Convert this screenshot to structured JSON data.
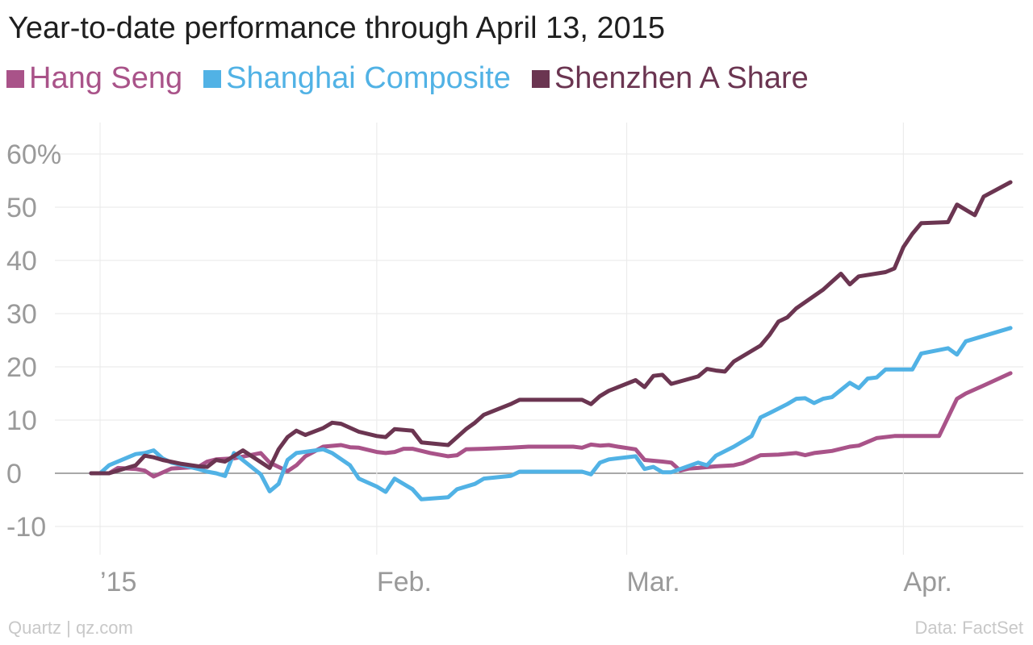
{
  "chart_data": {
    "type": "line",
    "title": "Year-to-date performance through April 13, 2015",
    "xlabel": "",
    "ylabel": "",
    "ylim": [
      -15,
      65
    ],
    "y_ticks": [
      {
        "value": 60,
        "label": "60%"
      },
      {
        "value": 50,
        "label": "50"
      },
      {
        "value": 40,
        "label": "40"
      },
      {
        "value": 30,
        "label": "30"
      },
      {
        "value": 20,
        "label": "20"
      },
      {
        "value": 10,
        "label": "10"
      },
      {
        "value": 0,
        "label": "0"
      },
      {
        "value": -10,
        "label": "-10"
      }
    ],
    "x_ticks": [
      {
        "value": "2015-01-01",
        "label": "’15"
      },
      {
        "value": "2015-02-01",
        "label": "Feb."
      },
      {
        "value": "2015-03-01",
        "label": "Mar."
      },
      {
        "value": "2015-04-01",
        "label": "Apr."
      }
    ],
    "grid": true,
    "legend_position": "top-left",
    "series": [
      {
        "name": "Hang Seng",
        "color": "#a95389",
        "points": [
          [
            "2014-12-31",
            0
          ],
          [
            "2015-01-02",
            0
          ],
          [
            "2015-01-03",
            1
          ],
          [
            "2015-01-05",
            0.8
          ],
          [
            "2015-01-06",
            0.5
          ],
          [
            "2015-01-07",
            -0.6
          ],
          [
            "2015-01-09",
            0.9
          ],
          [
            "2015-01-12",
            1.2
          ],
          [
            "2015-01-13",
            2.2
          ],
          [
            "2015-01-14",
            2.6
          ],
          [
            "2015-01-16",
            2.8
          ],
          [
            "2015-01-19",
            3.8
          ],
          [
            "2015-01-20",
            2.0
          ],
          [
            "2015-01-21",
            1.2
          ],
          [
            "2015-01-22",
            0.4
          ],
          [
            "2015-01-23",
            1.5
          ],
          [
            "2015-01-24",
            3.2
          ],
          [
            "2015-01-26",
            5.0
          ],
          [
            "2015-01-28",
            5.3
          ],
          [
            "2015-01-29",
            4.9
          ],
          [
            "2015-01-30",
            4.8
          ],
          [
            "2015-02-01",
            4.0
          ],
          [
            "2015-02-02",
            3.8
          ],
          [
            "2015-02-03",
            4.0
          ],
          [
            "2015-02-04",
            4.6
          ],
          [
            "2015-02-05",
            4.6
          ],
          [
            "2015-02-07",
            3.8
          ],
          [
            "2015-02-09",
            3.2
          ],
          [
            "2015-02-10",
            3.4
          ],
          [
            "2015-02-11",
            4.5
          ],
          [
            "2015-02-13",
            4.6
          ],
          [
            "2015-02-16",
            4.8
          ],
          [
            "2015-02-18",
            5.0
          ],
          [
            "2015-02-20",
            5.0
          ],
          [
            "2015-02-23",
            5.0
          ],
          [
            "2015-02-24",
            4.8
          ],
          [
            "2015-02-25",
            5.4
          ],
          [
            "2015-02-26",
            5.2
          ],
          [
            "2015-02-27",
            5.3
          ],
          [
            "2015-02-28",
            5.0
          ],
          [
            "2015-03-02",
            4.5
          ],
          [
            "2015-03-03",
            2.5
          ],
          [
            "2015-03-05",
            2.2
          ],
          [
            "2015-03-06",
            2.0
          ],
          [
            "2015-03-07",
            0.5
          ],
          [
            "2015-03-08",
            0.9
          ],
          [
            "2015-03-09",
            1.0
          ],
          [
            "2015-03-11",
            1.3
          ],
          [
            "2015-03-13",
            1.5
          ],
          [
            "2015-03-14",
            1.9
          ],
          [
            "2015-03-16",
            3.4
          ],
          [
            "2015-03-18",
            3.5
          ],
          [
            "2015-03-20",
            3.8
          ],
          [
            "2015-03-21",
            3.4
          ],
          [
            "2015-03-22",
            3.8
          ],
          [
            "2015-03-24",
            4.2
          ],
          [
            "2015-03-26",
            5.0
          ],
          [
            "2015-03-27",
            5.2
          ],
          [
            "2015-03-29",
            6.6
          ],
          [
            "2015-03-31",
            7.0
          ],
          [
            "2015-04-01",
            7.0
          ],
          [
            "2015-04-05",
            7.0
          ],
          [
            "2015-04-06",
            10.5
          ],
          [
            "2015-04-07",
            14.0
          ],
          [
            "2015-04-08",
            15.0
          ],
          [
            "2015-04-10",
            16.5
          ],
          [
            "2015-04-13",
            18.8
          ]
        ]
      },
      {
        "name": "Shanghai Composite",
        "color": "#51b2e5",
        "points": [
          [
            "2014-12-31",
            0
          ],
          [
            "2015-01-01",
            0
          ],
          [
            "2015-01-02",
            1.5
          ],
          [
            "2015-01-05",
            3.6
          ],
          [
            "2015-01-06",
            3.8
          ],
          [
            "2015-01-07",
            4.3
          ],
          [
            "2015-01-08",
            2.8
          ],
          [
            "2015-01-09",
            2.0
          ],
          [
            "2015-01-12",
            0.8
          ],
          [
            "2015-01-13",
            0.3
          ],
          [
            "2015-01-14",
            0.0
          ],
          [
            "2015-01-15",
            -0.5
          ],
          [
            "2015-01-16",
            3.8
          ],
          [
            "2015-01-19",
            -0.2
          ],
          [
            "2015-01-20",
            -3.4
          ],
          [
            "2015-01-21",
            -2.0
          ],
          [
            "2015-01-22",
            2.5
          ],
          [
            "2015-01-23",
            3.8
          ],
          [
            "2015-01-26",
            4.5
          ],
          [
            "2015-01-27",
            3.8
          ],
          [
            "2015-01-29",
            1.5
          ],
          [
            "2015-01-30",
            -1.0
          ],
          [
            "2015-02-01",
            -2.5
          ],
          [
            "2015-02-02",
            -3.5
          ],
          [
            "2015-02-03",
            -1.0
          ],
          [
            "2015-02-05",
            -3.0
          ],
          [
            "2015-02-06",
            -4.9
          ],
          [
            "2015-02-09",
            -4.5
          ],
          [
            "2015-02-10",
            -3.0
          ],
          [
            "2015-02-12",
            -2.0
          ],
          [
            "2015-02-13",
            -1.0
          ],
          [
            "2015-02-16",
            -0.5
          ],
          [
            "2015-02-17",
            0.3
          ],
          [
            "2015-02-24",
            0.3
          ],
          [
            "2015-02-25",
            -0.2
          ],
          [
            "2015-02-26",
            2.0
          ],
          [
            "2015-02-27",
            2.6
          ],
          [
            "2015-03-02",
            3.2
          ],
          [
            "2015-03-03",
            0.8
          ],
          [
            "2015-03-04",
            1.2
          ],
          [
            "2015-03-05",
            0.2
          ],
          [
            "2015-03-06",
            0.2
          ],
          [
            "2015-03-09",
            2.0
          ],
          [
            "2015-03-10",
            1.5
          ],
          [
            "2015-03-11",
            3.3
          ],
          [
            "2015-03-13",
            5.0
          ],
          [
            "2015-03-15",
            7.0
          ],
          [
            "2015-03-16",
            10.5
          ],
          [
            "2015-03-17",
            11.3
          ],
          [
            "2015-03-19",
            13.0
          ],
          [
            "2015-03-20",
            14.0
          ],
          [
            "2015-03-21",
            14.1
          ],
          [
            "2015-03-22",
            13.2
          ],
          [
            "2015-03-23",
            14.0
          ],
          [
            "2015-03-24",
            14.3
          ],
          [
            "2015-03-26",
            17.0
          ],
          [
            "2015-03-27",
            16.0
          ],
          [
            "2015-03-28",
            17.8
          ],
          [
            "2015-03-29",
            18.0
          ],
          [
            "2015-03-30",
            19.5
          ],
          [
            "2015-04-02",
            19.5
          ],
          [
            "2015-04-03",
            22.5
          ],
          [
            "2015-04-06",
            23.5
          ],
          [
            "2015-04-07",
            22.3
          ],
          [
            "2015-04-08",
            24.8
          ],
          [
            "2015-04-13",
            27.3
          ]
        ]
      },
      {
        "name": "Shenzhen A Share",
        "color": "#6b3551",
        "points": [
          [
            "2014-12-31",
            0
          ],
          [
            "2015-01-02",
            0
          ],
          [
            "2015-01-05",
            1.5
          ],
          [
            "2015-01-06",
            3.3
          ],
          [
            "2015-01-07",
            3.0
          ],
          [
            "2015-01-08",
            2.5
          ],
          [
            "2015-01-10",
            1.8
          ],
          [
            "2015-01-12",
            1.3
          ],
          [
            "2015-01-13",
            1.2
          ],
          [
            "2015-01-14",
            2.5
          ],
          [
            "2015-01-15",
            2.2
          ],
          [
            "2015-01-17",
            4.3
          ],
          [
            "2015-01-20",
            1.0
          ],
          [
            "2015-01-21",
            4.5
          ],
          [
            "2015-01-22",
            6.8
          ],
          [
            "2015-01-23",
            8.0
          ],
          [
            "2015-01-24",
            7.2
          ],
          [
            "2015-01-26",
            8.5
          ],
          [
            "2015-01-27",
            9.5
          ],
          [
            "2015-01-28",
            9.3
          ],
          [
            "2015-01-30",
            7.8
          ],
          [
            "2015-02-01",
            7.0
          ],
          [
            "2015-02-02",
            6.8
          ],
          [
            "2015-02-03",
            8.3
          ],
          [
            "2015-02-05",
            8.0
          ],
          [
            "2015-02-06",
            5.8
          ],
          [
            "2015-02-09",
            5.3
          ],
          [
            "2015-02-10",
            6.8
          ],
          [
            "2015-02-11",
            8.3
          ],
          [
            "2015-02-12",
            9.5
          ],
          [
            "2015-02-13",
            11.0
          ],
          [
            "2015-02-16",
            13.0
          ],
          [
            "2015-02-17",
            13.8
          ],
          [
            "2015-02-24",
            13.8
          ],
          [
            "2015-02-25",
            13.0
          ],
          [
            "2015-02-26",
            14.5
          ],
          [
            "2015-02-27",
            15.5
          ],
          [
            "2015-03-02",
            17.5
          ],
          [
            "2015-03-03",
            16.2
          ],
          [
            "2015-03-04",
            18.3
          ],
          [
            "2015-03-05",
            18.5
          ],
          [
            "2015-03-06",
            16.8
          ],
          [
            "2015-03-09",
            18.2
          ],
          [
            "2015-03-10",
            19.6
          ],
          [
            "2015-03-11",
            19.3
          ],
          [
            "2015-03-12",
            19.1
          ],
          [
            "2015-03-13",
            21.0
          ],
          [
            "2015-03-16",
            24.0
          ],
          [
            "2015-03-17",
            26.0
          ],
          [
            "2015-03-18",
            28.5
          ],
          [
            "2015-03-19",
            29.3
          ],
          [
            "2015-03-20",
            31.0
          ],
          [
            "2015-03-23",
            34.5
          ],
          [
            "2015-03-24",
            36.0
          ],
          [
            "2015-03-25",
            37.5
          ],
          [
            "2015-03-26",
            35.5
          ],
          [
            "2015-03-27",
            37.0
          ],
          [
            "2015-03-30",
            37.8
          ],
          [
            "2015-03-31",
            38.5
          ],
          [
            "2015-04-01",
            42.5
          ],
          [
            "2015-04-02",
            45.0
          ],
          [
            "2015-04-03",
            47.0
          ],
          [
            "2015-04-06",
            47.2
          ],
          [
            "2015-04-07",
            50.5
          ],
          [
            "2015-04-08",
            49.5
          ],
          [
            "2015-04-09",
            48.5
          ],
          [
            "2015-04-10",
            52.0
          ],
          [
            "2015-04-13",
            54.7
          ]
        ]
      }
    ]
  },
  "footer": {
    "source_left": "Quartz | qz.com",
    "source_right": "Data: FactSet"
  }
}
